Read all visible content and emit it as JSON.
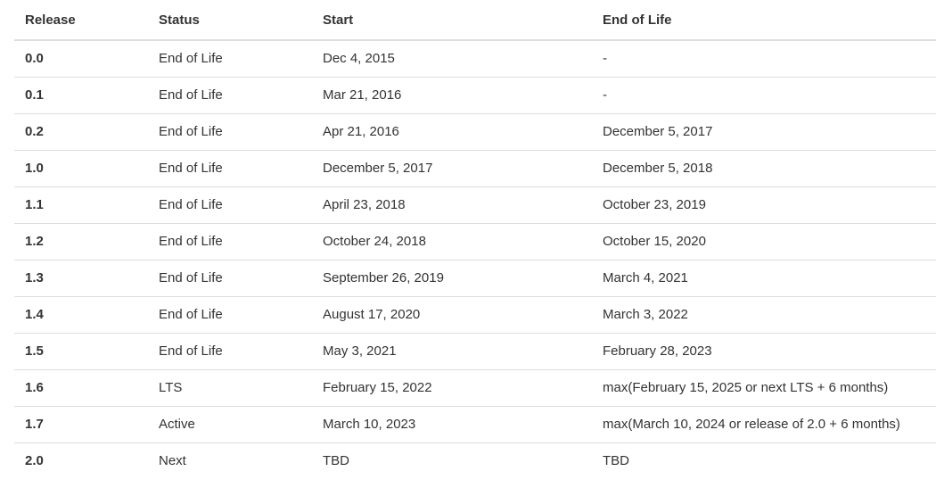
{
  "table": {
    "headers": {
      "release": "Release",
      "status": "Status",
      "start": "Start",
      "eol": "End of Life"
    },
    "rows": [
      {
        "release": "0.0",
        "status": "End of Life",
        "start": "Dec 4, 2015",
        "eol": "-"
      },
      {
        "release": "0.1",
        "status": "End of Life",
        "start": "Mar 21, 2016",
        "eol": "-"
      },
      {
        "release": "0.2",
        "status": "End of Life",
        "start": "Apr 21, 2016",
        "eol": "December 5, 2017"
      },
      {
        "release": "1.0",
        "status": "End of Life",
        "start": "December 5, 2017",
        "eol": "December 5, 2018"
      },
      {
        "release": "1.1",
        "status": "End of Life",
        "start": "April 23, 2018",
        "eol": "October 23, 2019"
      },
      {
        "release": "1.2",
        "status": "End of Life",
        "start": "October 24, 2018",
        "eol": "October 15, 2020"
      },
      {
        "release": "1.3",
        "status": "End of Life",
        "start": "September 26, 2019",
        "eol": "March 4, 2021"
      },
      {
        "release": "1.4",
        "status": "End of Life",
        "start": "August 17, 2020",
        "eol": "March 3, 2022"
      },
      {
        "release": "1.5",
        "status": "End of Life",
        "start": "May 3, 2021",
        "eol": "February 28, 2023"
      },
      {
        "release": "1.6",
        "status": "LTS",
        "start": "February 15, 2022",
        "eol": "max(February 15, 2025 or next LTS + 6 months)"
      },
      {
        "release": "1.7",
        "status": "Active",
        "start": "March 10, 2023",
        "eol": "max(March 10, 2024 or release of 2.0 + 6 months)"
      },
      {
        "release": "2.0",
        "status": "Next",
        "start": "TBD",
        "eol": "TBD"
      }
    ]
  },
  "colors": {
    "text": "#333333",
    "border": "#dddddd",
    "background": "#ffffff"
  }
}
